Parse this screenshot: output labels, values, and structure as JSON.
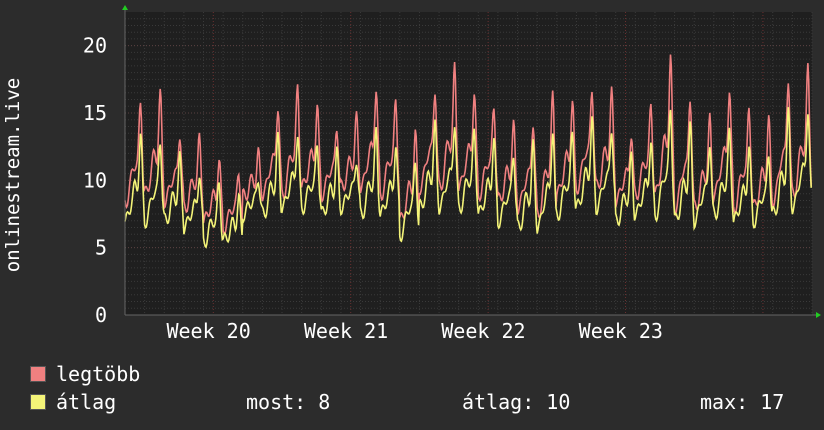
{
  "chart_data": {
    "type": "line",
    "title": "",
    "ylabel": "onlinestream.live",
    "ylim": [
      0,
      22.5
    ],
    "yticks": [
      0,
      5,
      10,
      15,
      20
    ],
    "xticks": [
      "Week 20",
      "Week 21",
      "Week 22",
      "Week 23"
    ],
    "grid": true,
    "legend_position": "bottom-left",
    "background_color": "#1f1f1f",
    "grid_color": "#3a3a3a",
    "week_line_color": "#6a3030",
    "series": [
      {
        "name": "legtöbb",
        "color": "#f08080",
        "note": "daily peaks shown as hourly samples across ~4.5 weeks",
        "daily_peaks": [
          16.4,
          17.0,
          14.0,
          13.5,
          12.0,
          11.0,
          12.2,
          16.2,
          17.5,
          16.0,
          14.5,
          15.0,
          17.6,
          16.5,
          14.0,
          17.5,
          19.0,
          17.2,
          16.0,
          14.5,
          15.0,
          17.0,
          16.5,
          17.5,
          17.0,
          14.0,
          16.0,
          20.0,
          17.0,
          15.0,
          17.5,
          16.0,
          15.0,
          18.5,
          19.0
        ],
        "daily_troughs": [
          8.5,
          9.0,
          8.5,
          8.0,
          7.0,
          6.5,
          8.8,
          9.0,
          9.0,
          9.5,
          9.0,
          9.5,
          9.5,
          9.0,
          7.0,
          9.5,
          9.5,
          9.5,
          9.0,
          8.5,
          8.0,
          7.5,
          9.0,
          9.5,
          9.5,
          8.5,
          9.0,
          9.0,
          8.0,
          8.0,
          9.0,
          8.0,
          8.0,
          8.5,
          9.0
        ]
      },
      {
        "name": "átlag",
        "color": "#f4f478",
        "note": "daily peaks shown as hourly samples across ~4.5 weeks",
        "daily_peaks": [
          14.0,
          13.5,
          12.0,
          11.0,
          10.0,
          9.0,
          10.5,
          13.5,
          14.0,
          13.0,
          12.5,
          12.0,
          14.0,
          13.0,
          12.0,
          14.5,
          15.0,
          14.0,
          13.5,
          12.5,
          13.0,
          14.5,
          14.0,
          15.0,
          14.5,
          12.0,
          13.5,
          16.0,
          14.5,
          13.5,
          14.0,
          13.0,
          12.5,
          15.5,
          16.0
        ],
        "daily_troughs": [
          7.0,
          7.0,
          7.0,
          6.5,
          5.5,
          5.5,
          7.5,
          7.5,
          8.0,
          8.0,
          7.5,
          8.0,
          7.5,
          7.5,
          6.0,
          8.0,
          8.0,
          8.0,
          7.5,
          7.0,
          6.5,
          6.5,
          7.5,
          8.0,
          8.0,
          7.0,
          7.5,
          7.5,
          7.0,
          7.0,
          7.5,
          7.0,
          7.0,
          7.5,
          8.0
        ]
      }
    ]
  },
  "legend": {
    "max_label": "legtöbb",
    "avg_label": "átlag",
    "max_color": "#f08080",
    "avg_color": "#f4f478"
  },
  "stats": {
    "now": "most: 8",
    "avg": "átlag: 10",
    "max": "max: 17"
  }
}
